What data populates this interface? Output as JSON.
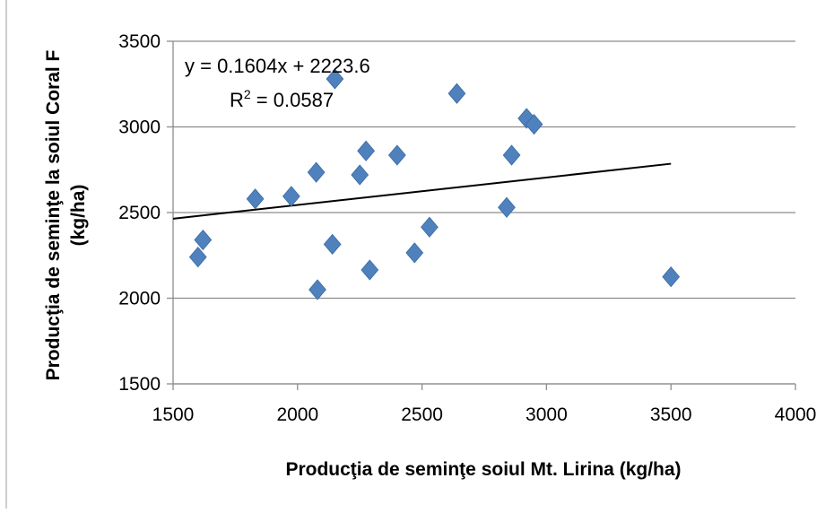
{
  "chart_data": {
    "type": "scatter",
    "title": "",
    "xlabel": "Producţia de seminţe soiul Mt. Lirina (kg/ha)",
    "ylabel_line1": "Producţia de seminţe la soiul  Coral F",
    "ylabel_line2": "(kg/ha)",
    "xlim": [
      1500,
      4000
    ],
    "ylim": [
      1500,
      3500
    ],
    "x_ticks": [
      "1500",
      "2000",
      "2500",
      "3000",
      "3500",
      "4000"
    ],
    "y_ticks": [
      "1500",
      "2000",
      "2500",
      "3000",
      "3500"
    ],
    "grid": "horizontal",
    "legend": "none",
    "marker": "diamond",
    "marker_color": "#4F81BD",
    "series": [
      {
        "points": [
          {
            "x": 1600,
            "y": 2240
          },
          {
            "x": 1620,
            "y": 2340
          },
          {
            "x": 1830,
            "y": 2580
          },
          {
            "x": 1975,
            "y": 2595
          },
          {
            "x": 2075,
            "y": 2735
          },
          {
            "x": 2080,
            "y": 2050
          },
          {
            "x": 2140,
            "y": 2315
          },
          {
            "x": 2150,
            "y": 3280
          },
          {
            "x": 2250,
            "y": 2720
          },
          {
            "x": 2275,
            "y": 2860
          },
          {
            "x": 2290,
            "y": 2165
          },
          {
            "x": 2400,
            "y": 2835
          },
          {
            "x": 2470,
            "y": 2265
          },
          {
            "x": 2530,
            "y": 2415
          },
          {
            "x": 2640,
            "y": 3195
          },
          {
            "x": 2840,
            "y": 2530
          },
          {
            "x": 2860,
            "y": 2835
          },
          {
            "x": 2920,
            "y": 3050
          },
          {
            "x": 2950,
            "y": 3015
          },
          {
            "x": 3500,
            "y": 2125
          }
        ]
      }
    ],
    "trendline": {
      "slope": 0.1604,
      "intercept": 2223.6,
      "x_range": [
        1500,
        3500
      ],
      "color": "#000000"
    },
    "equation_label": "y = 0.1604x + 2223.6",
    "r2_label": "R² = 0.0587"
  }
}
